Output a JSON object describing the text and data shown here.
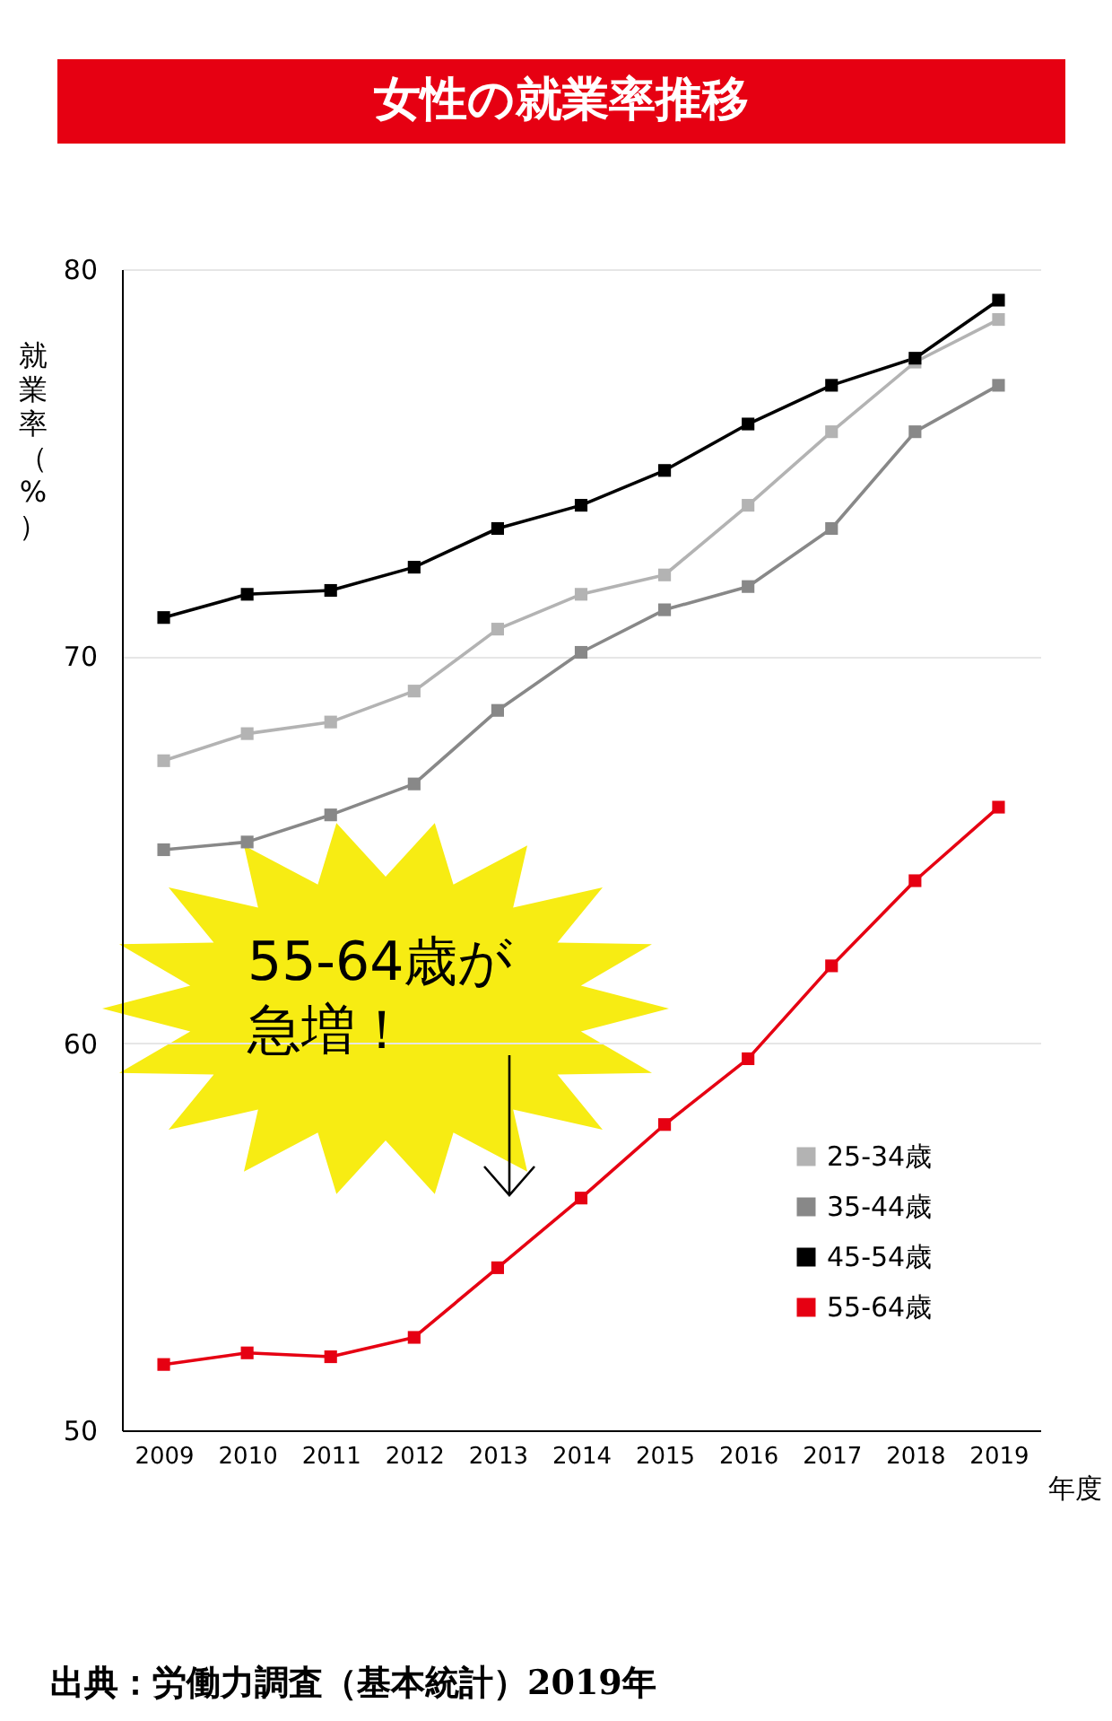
{
  "chart_data": {
    "type": "line",
    "title": "女性の就業率推移",
    "xlabel": "年度",
    "ylabel": "就業率（%）",
    "categories": [
      "2009",
      "2010",
      "2011",
      "2012",
      "2013",
      "2014",
      "2015",
      "2016",
      "2017",
      "2018",
      "2019"
    ],
    "series": [
      {
        "name": "25-34歳",
        "color": "#b3b3b3",
        "values": [
          67.3,
          68.0,
          68.3,
          69.1,
          70.7,
          71.6,
          72.1,
          73.9,
          75.8,
          77.6,
          78.7
        ]
      },
      {
        "name": "35-44歳",
        "color": "#888888",
        "values": [
          65.0,
          65.2,
          65.9,
          66.7,
          68.6,
          70.1,
          71.2,
          71.8,
          73.3,
          75.8,
          77.0
        ]
      },
      {
        "name": "45-54歳",
        "color": "#000000",
        "values": [
          71.0,
          71.6,
          71.7,
          72.3,
          73.3,
          73.9,
          74.8,
          76.0,
          77.0,
          77.7,
          79.2
        ]
      },
      {
        "name": "55-64歳",
        "color": "#e60012",
        "values": [
          51.7,
          52.0,
          51.9,
          52.4,
          54.2,
          56.0,
          57.9,
          59.6,
          62.0,
          64.2,
          66.1
        ]
      }
    ],
    "ylim": [
      50,
      80
    ],
    "yticks": [
      50,
      60,
      70,
      80
    ],
    "grid": "y",
    "legend": "bottom right",
    "marker": "square",
    "line_style": "solid",
    "annotations": [
      "55-64歳が急増！",
      "出典：労働力調査（基本統計）2019年"
    ]
  }
}
